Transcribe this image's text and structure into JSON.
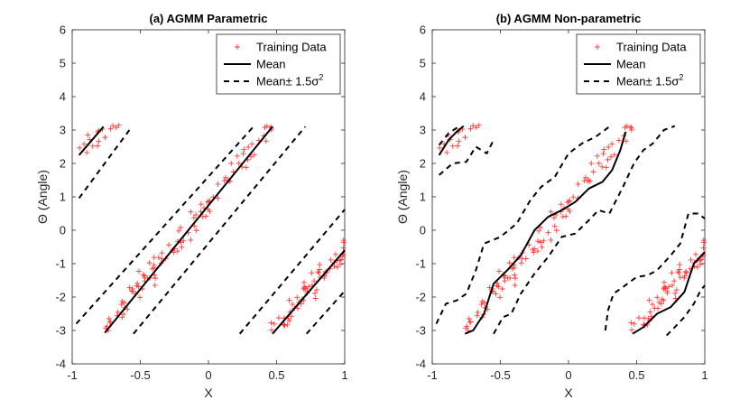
{
  "figure": {
    "background": "#ffffff"
  },
  "chart_data": [
    {
      "type": "scatter+line",
      "title": "(a) AGMM Parametric",
      "xlabel": "X",
      "ylabel": "Θ (Angle)",
      "xlim": [
        -1,
        1
      ],
      "ylim": [
        -4,
        6
      ],
      "xticks": [
        -1,
        -0.5,
        0,
        0.5,
        1
      ],
      "xtick_labels": [
        "-1",
        "-0.5",
        "0",
        "0.5",
        "1"
      ],
      "yticks": [
        -4,
        -3,
        -2,
        -1,
        0,
        1,
        2,
        3,
        4,
        5,
        6
      ],
      "ytick_labels": [
        "-4",
        "-3",
        "-2",
        "-1",
        "0",
        "1",
        "2",
        "3",
        "4",
        "5",
        "6"
      ],
      "legend": {
        "placement": "top-right",
        "entries": [
          {
            "label": "Training Data",
            "style": "marker-plus",
            "color": "#ff3b3b"
          },
          {
            "label": "Mean",
            "style": "solid",
            "color": "#000000"
          },
          {
            "label": "Mean± 1.5σ",
            "superscript": "2",
            "style": "dashed",
            "color": "#000000"
          }
        ]
      },
      "mean_segments": [
        [
          [
            -0.95,
            2.25
          ],
          [
            -0.77,
            3.1
          ]
        ],
        [
          [
            -0.76,
            -3.07
          ],
          [
            0.47,
            3.1
          ]
        ],
        [
          [
            0.47,
            -3.1
          ],
          [
            1.0,
            -0.6
          ]
        ]
      ],
      "band_segments": [
        [
          [
            -0.95,
            0.96
          ],
          [
            -0.58,
            3.0
          ]
        ],
        [
          [
            -0.97,
            -2.8
          ],
          [
            0.33,
            3.1
          ]
        ],
        [
          [
            -0.55,
            -3.1
          ],
          [
            0.71,
            3.1
          ]
        ],
        [
          [
            0.23,
            -3.1
          ],
          [
            1.0,
            0.62
          ]
        ],
        [
          [
            0.72,
            -3.1
          ],
          [
            1.0,
            -1.82
          ]
        ]
      ]
    },
    {
      "type": "scatter+line",
      "title": "(b) AGMM Non-parametric",
      "xlabel": "X",
      "ylabel": "Θ (Angle)",
      "xlim": [
        -1,
        1
      ],
      "ylim": [
        -4,
        6
      ],
      "xticks": [
        -1,
        -0.5,
        0,
        0.5,
        1
      ],
      "xtick_labels": [
        "-1",
        "-0.5",
        "0",
        "0.5",
        "1"
      ],
      "yticks": [
        -4,
        -3,
        -2,
        -1,
        0,
        1,
        2,
        3,
        4,
        5,
        6
      ],
      "ytick_labels": [
        "-4",
        "-3",
        "-2",
        "-1",
        "0",
        "1",
        "2",
        "3",
        "4",
        "5",
        "6"
      ],
      "legend": {
        "placement": "top-right",
        "entries": [
          {
            "label": "Training Data",
            "style": "marker-plus",
            "color": "#ff3b3b"
          },
          {
            "label": "Mean",
            "style": "solid",
            "color": "#000000"
          },
          {
            "label": "Mean± 1.5σ",
            "superscript": "2",
            "style": "dashed",
            "color": "#000000"
          }
        ]
      },
      "mean_segments": [
        [
          [
            -0.95,
            2.25
          ],
          [
            -0.88,
            2.7
          ],
          [
            -0.82,
            2.95
          ],
          [
            -0.77,
            3.12
          ]
        ],
        [
          [
            -0.76,
            -3.1
          ],
          [
            -0.7,
            -3.0
          ],
          [
            -0.62,
            -2.5
          ],
          [
            -0.55,
            -1.6
          ],
          [
            -0.45,
            -1.2
          ],
          [
            -0.35,
            -0.75
          ],
          [
            -0.25,
            0.0
          ],
          [
            -0.15,
            0.4
          ],
          [
            -0.05,
            0.6
          ],
          [
            0.05,
            0.85
          ],
          [
            0.15,
            1.25
          ],
          [
            0.25,
            1.45
          ],
          [
            0.32,
            1.8
          ],
          [
            0.38,
            2.4
          ],
          [
            0.42,
            2.95
          ]
        ],
        [
          [
            0.47,
            -3.1
          ],
          [
            0.55,
            -2.9
          ],
          [
            0.65,
            -2.5
          ],
          [
            0.75,
            -2.3
          ],
          [
            0.85,
            -1.85
          ],
          [
            0.92,
            -1.0
          ],
          [
            1.0,
            -0.65
          ]
        ]
      ],
      "band_segments": [
        [
          [
            -0.95,
            2.55
          ],
          [
            -0.88,
            2.9
          ],
          [
            -0.8,
            3.12
          ]
        ],
        [
          [
            -0.95,
            1.65
          ],
          [
            -0.85,
            2.0
          ],
          [
            -0.75,
            2.05
          ],
          [
            -0.68,
            2.5
          ],
          [
            -0.6,
            2.3
          ],
          [
            -0.55,
            2.7
          ]
        ],
        [
          [
            -0.97,
            -2.8
          ],
          [
            -0.9,
            -2.2
          ],
          [
            -0.82,
            -2.1
          ],
          [
            -0.75,
            -1.9
          ],
          [
            -0.68,
            -1.2
          ],
          [
            -0.62,
            -0.4
          ],
          [
            -0.5,
            -0.2
          ],
          [
            -0.38,
            0.2
          ],
          [
            -0.28,
            0.9
          ],
          [
            -0.2,
            1.3
          ],
          [
            -0.1,
            1.6
          ],
          [
            0.0,
            2.3
          ],
          [
            0.1,
            2.6
          ],
          [
            0.2,
            2.8
          ],
          [
            0.3,
            3.1
          ]
        ],
        [
          [
            -0.55,
            -3.1
          ],
          [
            -0.48,
            -2.6
          ],
          [
            -0.42,
            -2.5
          ],
          [
            -0.35,
            -1.9
          ],
          [
            -0.25,
            -1.3
          ],
          [
            -0.15,
            -0.8
          ],
          [
            -0.05,
            -0.2
          ],
          [
            0.05,
            -0.1
          ],
          [
            0.15,
            0.3
          ],
          [
            0.22,
            0.6
          ],
          [
            0.3,
            0.5
          ],
          [
            0.4,
            1.3
          ],
          [
            0.48,
            2.0
          ],
          [
            0.55,
            2.4
          ],
          [
            0.62,
            2.6
          ],
          [
            0.7,
            3.0
          ],
          [
            0.78,
            3.12
          ]
        ],
        [
          [
            0.27,
            -3.0
          ],
          [
            0.29,
            -2.4
          ],
          [
            0.33,
            -1.9
          ],
          [
            0.4,
            -1.7
          ],
          [
            0.5,
            -1.4
          ],
          [
            0.58,
            -1.35
          ],
          [
            0.65,
            -1.2
          ],
          [
            0.75,
            -0.75
          ],
          [
            0.82,
            -0.4
          ],
          [
            0.88,
            0.5
          ],
          [
            0.95,
            0.5
          ],
          [
            1.0,
            0.35
          ]
        ],
        [
          [
            0.72,
            -3.15
          ],
          [
            0.78,
            -2.9
          ],
          [
            0.85,
            -2.6
          ],
          [
            0.92,
            -2.2
          ],
          [
            0.97,
            -1.8
          ],
          [
            1.0,
            -1.65
          ]
        ]
      ]
    }
  ]
}
